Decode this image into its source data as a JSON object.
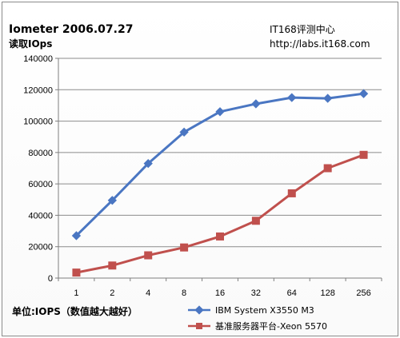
{
  "chart_data": {
    "type": "line",
    "title": "Iometer 2006.07.27",
    "subtitle": "读取IOps",
    "source_name": "IT168评测中心",
    "source_url": "http://labs.it168.com",
    "unit_note": "单位:IOPS（数值越大越好）",
    "categories": [
      "1",
      "2",
      "4",
      "8",
      "16",
      "32",
      "64",
      "128",
      "256"
    ],
    "ylim": [
      0,
      140000
    ],
    "yticks": [
      "0",
      "20000",
      "40000",
      "60000",
      "80000",
      "100000",
      "120000",
      "140000"
    ],
    "grid": true,
    "legend_position": "bottom-right",
    "series": [
      {
        "name": "IBM System X3550 M3",
        "color": "#4a76c2",
        "marker": "diamond",
        "values": [
          27000,
          49500,
          73000,
          93000,
          106000,
          111000,
          115000,
          114500,
          117500
        ]
      },
      {
        "name": "基准服务器平台-Xeon 5570",
        "color": "#c0504d",
        "marker": "square",
        "values": [
          3500,
          8000,
          14500,
          19500,
          26500,
          36500,
          54000,
          70000,
          78500
        ]
      }
    ]
  }
}
